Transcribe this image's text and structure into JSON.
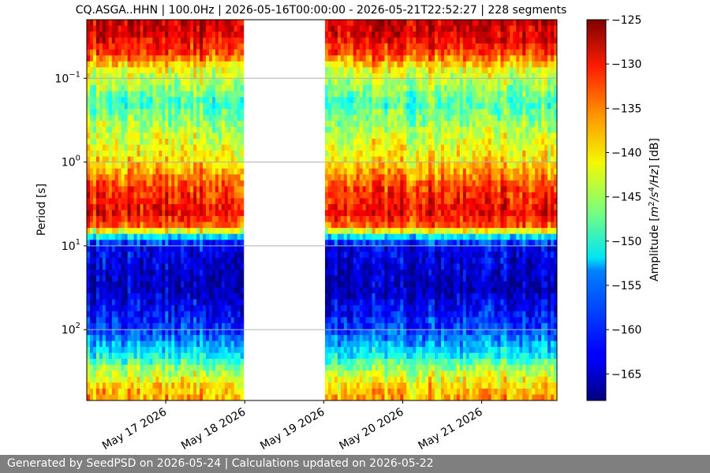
{
  "chart_data": {
    "type": "heatmap",
    "title": "CQ.ASGA..HHN | 100.0Hz | 2026-05-16T00:00:00 - 2026-05-21T22:52:27 | 228 segments",
    "ylabel": "Period [s]",
    "x_axis": {
      "type": "date",
      "range": [
        "2026-05-16T00:00:00",
        "2026-05-21T22:52:27"
      ],
      "ticks": [
        {
          "date": "2026-05-17",
          "label": "May 17 2026"
        },
        {
          "date": "2026-05-18",
          "label": "May 18 2026"
        },
        {
          "date": "2026-05-19",
          "label": "May 19 2026"
        },
        {
          "date": "2026-05-20",
          "label": "May 20 2026"
        },
        {
          "date": "2026-05-21",
          "label": "May 21 2026"
        }
      ]
    },
    "y_axis": {
      "scale": "log",
      "inverted": true,
      "range": [
        0.02,
        700
      ],
      "ticks": [
        {
          "value": 0.1,
          "base": "10",
          "exp": "−1"
        },
        {
          "value": 1,
          "base": "10",
          "exp": "0"
        },
        {
          "value": 10,
          "base": "10",
          "exp": "1"
        },
        {
          "value": 100,
          "base": "10",
          "exp": "2"
        }
      ],
      "grid": true
    },
    "colorbar": {
      "label": "Amplitude [m²/s⁴/Hz] [dB]",
      "colormap": "jet",
      "range": [
        -168,
        -125
      ],
      "ticks": [
        -125,
        -130,
        -135,
        -140,
        -145,
        -150,
        -155,
        -160,
        -165
      ],
      "tick_labels": [
        "−125",
        "−130",
        "−135",
        "−140",
        "−145",
        "−150",
        "−155",
        "−160",
        "−165"
      ]
    },
    "data_gaps": [
      [
        "2026-05-16T23:45:00",
        "2026-05-17T00:10:00"
      ],
      [
        "2026-05-17T23:55:00",
        "2026-05-19T00:00:00"
      ],
      [
        "2026-05-19T23:55:00",
        "2026-05-20T00:05:00"
      ],
      [
        "2026-05-20T23:50:00",
        "2026-05-21T00:05:00"
      ],
      [
        "2026-05-21T10:15:00",
        "2026-05-21T10:25:00"
      ]
    ],
    "amplitude_profile_db": [
      {
        "period": 0.02,
        "amplitude": -128
      },
      {
        "period": 0.03,
        "amplitude": -129
      },
      {
        "period": 0.05,
        "amplitude": -133
      },
      {
        "period": 0.08,
        "amplitude": -142
      },
      {
        "period": 0.2,
        "amplitude": -149
      },
      {
        "period": 0.5,
        "amplitude": -143
      },
      {
        "period": 1,
        "amplitude": -140
      },
      {
        "period": 2,
        "amplitude": -133
      },
      {
        "period": 4,
        "amplitude": -130
      },
      {
        "period": 6,
        "amplitude": -135
      },
      {
        "period": 8,
        "amplitude": -155
      },
      {
        "period": 10,
        "amplitude": -163
      },
      {
        "period": 30,
        "amplitude": -166
      },
      {
        "period": 100,
        "amplitude": -160
      },
      {
        "period": 200,
        "amplitude": -152
      },
      {
        "period": 300,
        "amplitude": -145
      },
      {
        "period": 450,
        "amplitude": -140
      },
      {
        "period": 700,
        "amplitude": -137
      }
    ]
  },
  "footer": {
    "text": "Generated by SeedPSD on 2026-05-24 | Calculations updated on 2026-05-22"
  }
}
